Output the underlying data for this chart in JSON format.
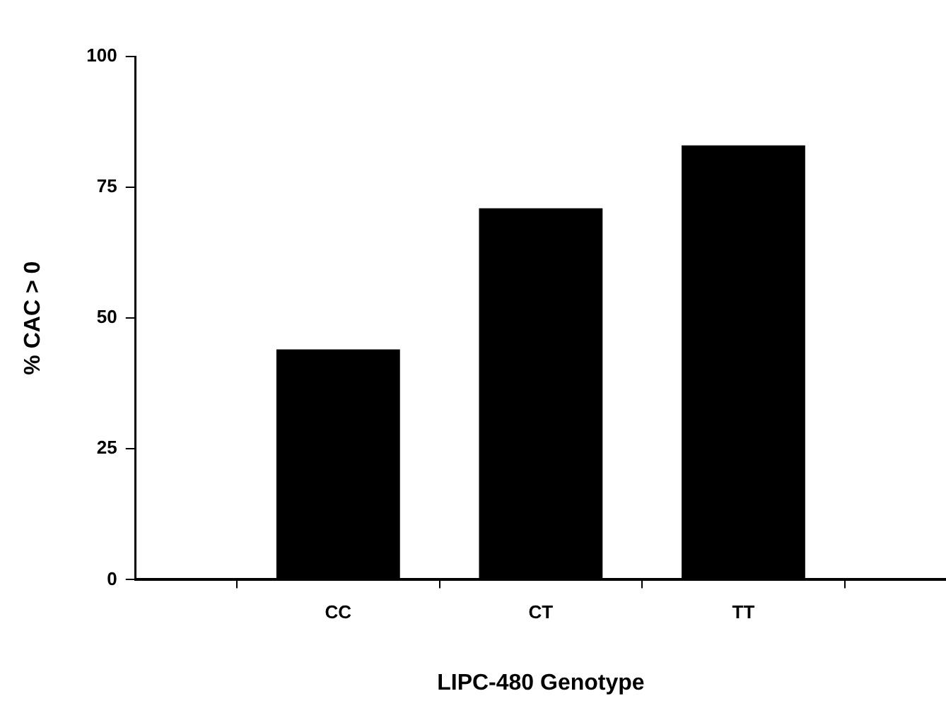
{
  "chart_data": {
    "type": "bar",
    "xlabel": "LIPC-480 Genotype",
    "ylabel": "% CAC > 0",
    "categories": [
      "CC",
      "CT",
      "TT"
    ],
    "values": [
      44,
      71,
      83
    ],
    "color": "#000000",
    "ylim": [
      0,
      100
    ],
    "yticks": [
      0,
      25,
      50,
      75,
      100
    ],
    "grid": false,
    "legend": false
  }
}
